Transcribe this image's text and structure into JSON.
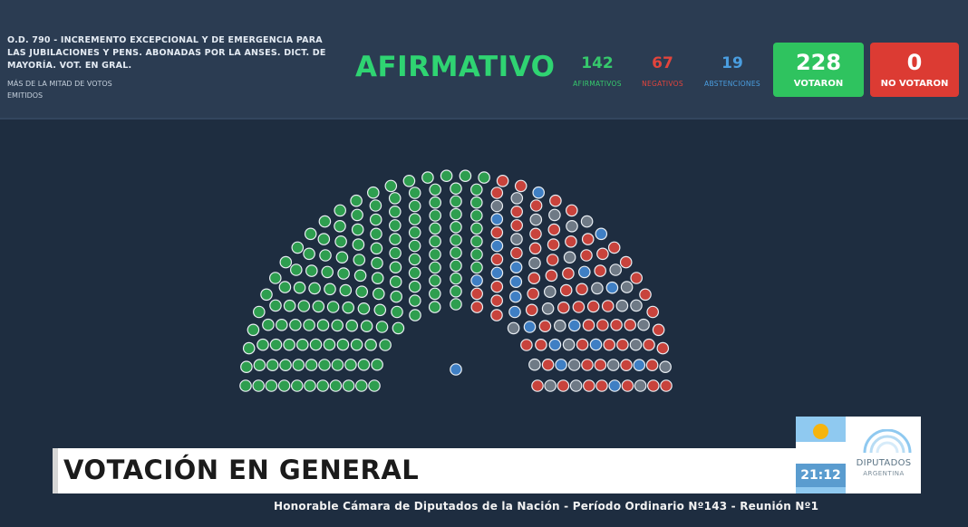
{
  "header": {
    "motion_text": "O.D. 790 - INCREMENTO EXCEPCIONAL Y DE EMERGENCIA PARA LAS JUBILACIONES Y PENS. ABONADAS POR LA ANSES. DICT. DE MAYORÍA. VOT. EN GRAL.",
    "majority_text": "MÁS DE LA MITAD DE VOTOS EMITIDOS",
    "result": "AFIRMATIVO"
  },
  "tallies": {
    "afirmativos": {
      "value": "142",
      "label": "AFIRMATIVOS"
    },
    "negativos": {
      "value": "67",
      "label": "NEGATIVOS"
    },
    "abstenciones": {
      "value": "19",
      "label": "ABSTENCIONES"
    },
    "votaron": {
      "value": "228",
      "label": "VOTARON"
    },
    "no_votaron": {
      "value": "0",
      "label": "NO VOTARON"
    }
  },
  "hemicycle": {
    "seat_counts": {
      "afirmativo": 142,
      "negativo": 67,
      "abstencion": 19,
      "ausente": 28
    },
    "colors": {
      "afirmativo": "#2e9e4f",
      "negativo": "#c8433c",
      "abstencion": "#3f7fc4",
      "ausente": "#6f7a86",
      "president": "#3f7fc4"
    }
  },
  "banner": {
    "title": "VOTACIÓN EN GENERAL"
  },
  "logo": {
    "time": "21:12",
    "name": "DIPUTADOS",
    "country": "ARGENTINA"
  },
  "ticker": {
    "text": "Honorable Cámara de Diputados de la Nación - Período Ordinario Nº143 - Reunión Nº1"
  },
  "colors": {
    "background": "#1e2d40",
    "header": "#2b3c52",
    "affirmative": "#2fd472",
    "negative": "#dc3b33",
    "abstention": "#4a9ee0"
  }
}
